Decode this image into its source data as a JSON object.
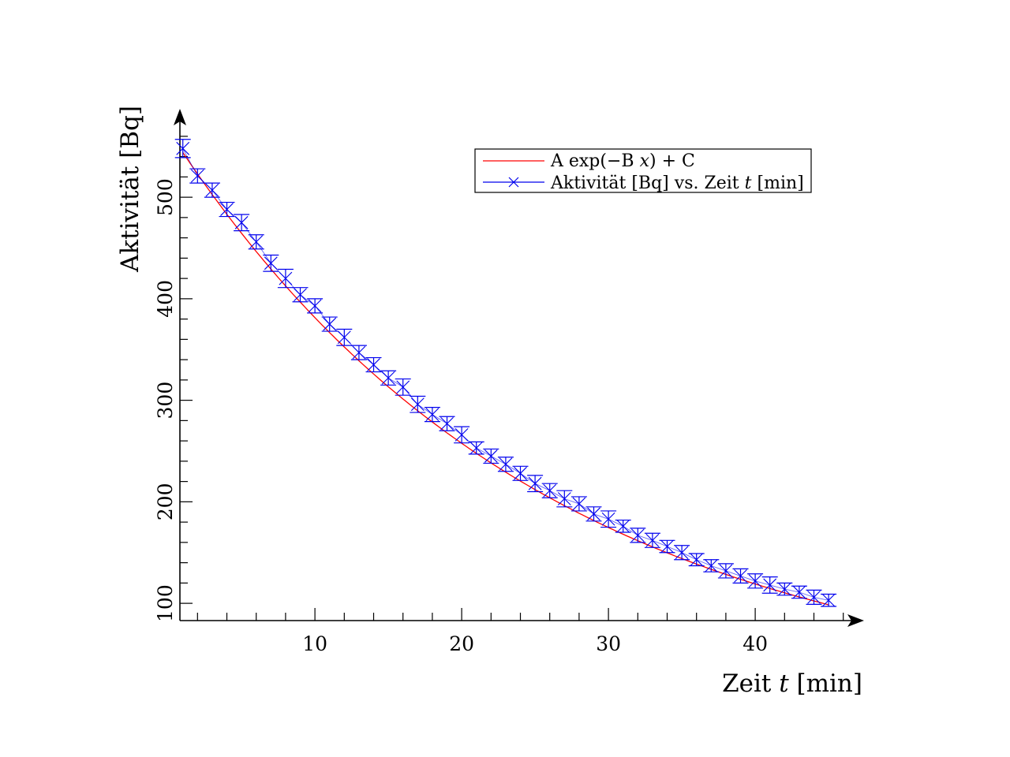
{
  "colors": {
    "fit": "#ff0000",
    "data": "#0000ee",
    "axis": "#000000"
  },
  "chart_data": {
    "type": "scatter",
    "xlabel_main": "Zeit",
    "xlabel_var": "t",
    "xlabel_unit": "[min]",
    "ylabel": "Aktivität [Bq]",
    "xlim": [
      0.8,
      46.5
    ],
    "ylim": [
      83,
      570
    ],
    "x_ticks": [
      10,
      20,
      30,
      40
    ],
    "x_tick_labels": [
      "10",
      "20",
      "30",
      "40"
    ],
    "y_ticks": [
      100,
      200,
      300,
      400,
      500
    ],
    "y_tick_labels": [
      "100",
      "200",
      "300",
      "400",
      "500"
    ],
    "legend_position": "top-right",
    "legend": [
      {
        "key": "fit",
        "pre": "A exp(−B ",
        "var": "x",
        "post": ") + C"
      },
      {
        "key": "data",
        "pre": "Aktivität [Bq] vs. Zeit ",
        "var": "t",
        "post": " [min]"
      }
    ],
    "fit": {
      "A": 560,
      "B": 0.04,
      "C": 6
    },
    "series": [
      {
        "x": [
          1,
          2,
          3,
          4,
          5,
          6,
          7,
          8,
          9,
          10,
          11,
          12,
          13,
          14,
          15,
          16,
          17,
          18,
          19,
          20,
          21,
          22,
          23,
          24,
          25,
          26,
          27,
          28,
          29,
          30,
          31,
          32,
          33,
          34,
          35,
          36,
          37,
          38,
          39,
          40,
          41,
          42,
          43,
          44,
          45
        ],
        "y": [
          548,
          521,
          507,
          488,
          475,
          456,
          435,
          420,
          404,
          393,
          375,
          362,
          347,
          335,
          322,
          313,
          296,
          286,
          277,
          266,
          253,
          245,
          237,
          228,
          218,
          211,
          203,
          198,
          188,
          183,
          176,
          167,
          162,
          156,
          150,
          143,
          137,
          132,
          127,
          122,
          118,
          114,
          111,
          106,
          103
        ],
        "err": [
          9,
          7,
          7,
          7,
          8,
          7,
          8,
          9,
          7,
          7,
          7,
          8,
          7,
          7,
          7,
          8,
          8,
          7,
          7,
          8,
          6,
          7,
          7,
          7,
          8,
          7,
          8,
          7,
          7,
          8,
          6,
          7,
          7,
          6,
          7,
          6,
          6,
          7,
          7,
          7,
          8,
          6,
          6,
          7,
          6
        ]
      }
    ]
  }
}
